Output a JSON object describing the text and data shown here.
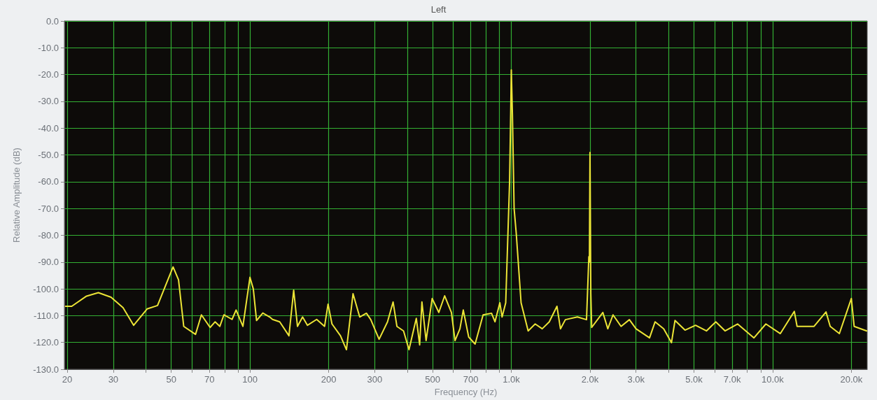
{
  "chart_data": {
    "type": "line",
    "title": "Left",
    "xlabel": "Frequency (Hz)",
    "ylabel": "Relative Amplitude (dB)",
    "log": "x",
    "grid": true,
    "marker": "none",
    "line_style": "solid",
    "xlim": [
      19.5,
      23000
    ],
    "xticks": [
      20,
      30,
      {
        "value": 40,
        "label": null
      },
      50,
      {
        "value": 60,
        "label": null
      },
      70,
      {
        "value": 80,
        "label": null
      },
      {
        "value": 90,
        "label": null
      },
      100,
      200,
      300,
      {
        "value": 400,
        "label": null
      },
      500,
      {
        "value": 600,
        "label": null
      },
      700,
      {
        "value": 800,
        "label": null
      },
      {
        "value": 900,
        "label": null
      },
      {
        "value": 1000,
        "label": "1.0k"
      },
      {
        "value": 2000,
        "label": "2.0k"
      },
      {
        "value": 3000,
        "label": "3.0k"
      },
      {
        "value": 4000,
        "label": null
      },
      {
        "value": 5000,
        "label": "5.0k"
      },
      {
        "value": 6000,
        "label": null
      },
      {
        "value": 7000,
        "label": "7.0k"
      },
      {
        "value": 8000,
        "label": null
      },
      {
        "value": 9000,
        "label": null
      },
      {
        "value": 10000,
        "label": "10.0k"
      },
      {
        "value": 20000,
        "label": "20.0k"
      }
    ],
    "ylim": [
      -130,
      0
    ],
    "yticks": [
      {
        "value": -130,
        "label": "-130.0"
      },
      {
        "value": -120,
        "label": "-120.0"
      },
      {
        "value": -110,
        "label": "-110.0"
      },
      {
        "value": -100,
        "label": "-100.0"
      },
      {
        "value": -90,
        "label": "-90.0"
      },
      {
        "value": -80,
        "label": "-80.0"
      },
      {
        "value": -70,
        "label": "-70.0"
      },
      {
        "value": -60,
        "label": "-60.0"
      },
      {
        "value": -50,
        "label": "-50.0"
      },
      {
        "value": -40,
        "label": "-40.0"
      },
      {
        "value": -30,
        "label": "-30.0"
      },
      {
        "value": -20,
        "label": "-20.0"
      },
      {
        "value": -10,
        "label": "-10.0"
      },
      {
        "value": 0,
        "label": "0.0"
      }
    ],
    "x": [
      19.7,
      20.8,
      23.7,
      26.3,
      29.4,
      32.7,
      35.9,
      40.4,
      44.3,
      50.8,
      53.3,
      55.8,
      61.9,
      65.2,
      70.4,
      73.6,
      76.7,
      79.5,
      85.4,
      88.5,
      94,
      100,
      103,
      106,
      112,
      119,
      122,
      130,
      141,
      147,
      152,
      159,
      166,
      180,
      193,
      199,
      206,
      222,
      234,
      248,
      263,
      279,
      290,
      312,
      336,
      353,
      365,
      387,
      406,
      433,
      446,
      455,
      472,
      498,
      528,
      556,
      590,
      609,
      636,
      655,
      687,
      727,
      780,
      840,
      866,
      904,
      922,
      952,
      985,
      995,
      1000,
      1010,
      1025,
      1044,
      1090,
      1160,
      1234,
      1313,
      1397,
      1495,
      1542,
      1610,
      1790,
      1940,
      1980,
      1990,
      2000,
      2015,
      2030,
      2240,
      2340,
      2450,
      2630,
      2830,
      3000,
      3380,
      3550,
      3830,
      4100,
      4230,
      4620,
      5070,
      5580,
      6060,
      6580,
      7340,
      8480,
      9420,
      10700,
      12100,
      12400,
      14400,
      16000,
      16600,
      18000,
      20000,
      20500,
      22900
    ],
    "series": [
      {
        "color": "#ece436",
        "values": [
          -106.5,
          -106.5,
          -102.7,
          -101.4,
          -103.1,
          -107,
          -113.6,
          -107.5,
          -106.2,
          -91.8,
          -96.6,
          -114,
          -117,
          -109.7,
          -114.4,
          -112.3,
          -114,
          -109.7,
          -111.4,
          -107.9,
          -114,
          -95.7,
          -100,
          -111.8,
          -109,
          -110.5,
          -111.4,
          -112.3,
          -117.5,
          -100.5,
          -114,
          -110.5,
          -113.6,
          -111.4,
          -114,
          -105.7,
          -113.1,
          -117.5,
          -122.7,
          -101.8,
          -110.5,
          -109.1,
          -111.5,
          -118.8,
          -112.3,
          -104.9,
          -114,
          -115.7,
          -122.7,
          -111,
          -120.9,
          -104.9,
          -119.3,
          -103.6,
          -108.8,
          -102.6,
          -108.8,
          -119.3,
          -114.9,
          -107.9,
          -118,
          -120.6,
          -109.7,
          -109.1,
          -112.3,
          -105.2,
          -110.5,
          -105.2,
          -60,
          -33.4,
          -18.3,
          -35,
          -70,
          -79,
          -105.2,
          -115.7,
          -113.1,
          -114.9,
          -112.3,
          -106.5,
          -114.9,
          -111.5,
          -110.5,
          -111.5,
          -88,
          -90,
          -49.1,
          -101.8,
          -114.4,
          -108.8,
          -114.9,
          -109.7,
          -114,
          -111.5,
          -114.9,
          -118.3,
          -112.3,
          -114.9,
          -120.1,
          -111.8,
          -115.4,
          -113.6,
          -115.7,
          -112.3,
          -115.7,
          -113.1,
          -118.3,
          -113.1,
          -116.7,
          -108.4,
          -114,
          -114,
          -108.6,
          -114,
          -116.7,
          -103.6,
          -114,
          -115.7
        ]
      }
    ]
  }
}
